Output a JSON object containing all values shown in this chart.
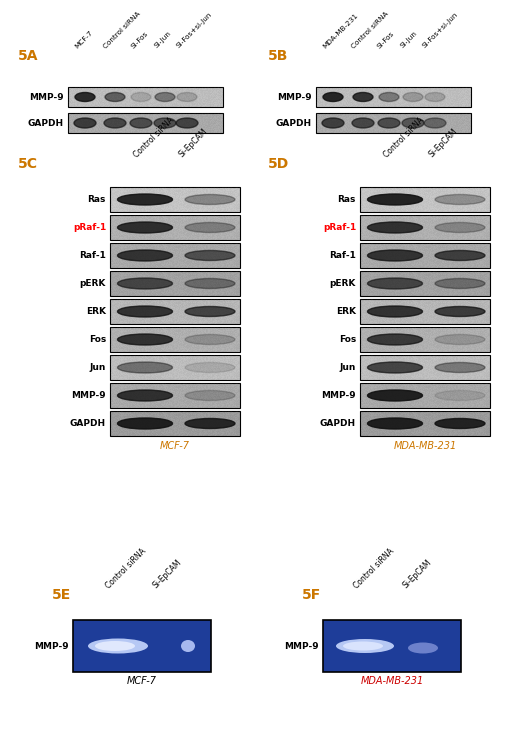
{
  "background_color": "#ffffff",
  "panel_5A": {
    "label": "5A",
    "col_labels": [
      "MCF-7",
      "Control siRNA",
      "Si-Fos",
      "Si-Jun",
      "Si-Fos+si-Jun"
    ],
    "rows": [
      "MMP-9",
      "GAPDH"
    ],
    "box_bg": [
      "#d8d8d8",
      "#c0c0c0"
    ],
    "mmp9_bands": [
      [
        0.85,
        0.6,
        0.18,
        0.45,
        0.22
      ],
      [
        0,
        0,
        0,
        0,
        0
      ]
    ],
    "gapdh_bands": [
      [
        0.7,
        0.65,
        0.62,
        0.6,
        0.68
      ],
      [
        0,
        0,
        0,
        0,
        0
      ]
    ]
  },
  "panel_5B": {
    "label": "5B",
    "col_labels": [
      "MDA-MB-231",
      "Control siRNA",
      "Si-Fos",
      "Si-Jun",
      "Si-Fos+si-Jun"
    ],
    "rows": [
      "MMP-9",
      "GAPDH"
    ],
    "box_bg": [
      "#d8d8d8",
      "#c0c0c0"
    ]
  },
  "panel_5C": {
    "label": "5C",
    "col_labels": [
      "Control siRNA",
      "Si-EpCAM"
    ],
    "rows": [
      "Ras",
      "pRaf-1",
      "Raf-1",
      "pERK",
      "ERK",
      "Fos",
      "Jun",
      "MMP-9",
      "GAPDH"
    ],
    "row_colors": [
      "black",
      "red",
      "black",
      "black",
      "black",
      "black",
      "black",
      "black",
      "black"
    ],
    "cell_label": "MCF-7",
    "ctrl_alpha": [
      0.88,
      0.82,
      0.78,
      0.65,
      0.8,
      0.8,
      0.45,
      0.8,
      0.9
    ],
    "si_alpha": [
      0.35,
      0.32,
      0.6,
      0.4,
      0.7,
      0.22,
      0.12,
      0.2,
      0.85
    ],
    "box_bg": [
      "#e0e0e0",
      "#c8c8c8",
      "#c0c0c0",
      "#b8b8b8",
      "#d0d0d0",
      "#c8c8c8",
      "#d8d8d8",
      "#c0c0c0",
      "#b0b0b0"
    ]
  },
  "panel_5D": {
    "label": "5D",
    "col_labels": [
      "Control siRNA",
      "Si-EpCAM"
    ],
    "rows": [
      "Ras",
      "pRaf-1",
      "Raf-1",
      "pERK",
      "ERK",
      "Fos",
      "Jun",
      "MMP-9",
      "GAPDH"
    ],
    "row_colors": [
      "black",
      "red",
      "black",
      "black",
      "black",
      "black",
      "black",
      "black",
      "black"
    ],
    "cell_label": "MDA-MB-231",
    "ctrl_alpha": [
      0.9,
      0.8,
      0.78,
      0.65,
      0.8,
      0.75,
      0.7,
      0.9,
      0.9
    ],
    "si_alpha": [
      0.3,
      0.28,
      0.7,
      0.38,
      0.75,
      0.18,
      0.4,
      0.1,
      0.88
    ],
    "box_bg": [
      "#e0e0e0",
      "#c8c8c8",
      "#c0c0c0",
      "#b8b8b8",
      "#d0d0d0",
      "#c8c8c8",
      "#d8d8d8",
      "#c0c0c0",
      "#b0b0b0"
    ]
  },
  "panel_5E": {
    "label": "5E",
    "col_labels": [
      "Control siRNA",
      "Si-EpCAM"
    ],
    "row_label": "MMP-9",
    "cell_label": "MCF-7",
    "bg_color": "#1e3d99"
  },
  "panel_5F": {
    "label": "5F",
    "col_labels": [
      "Control siRNA",
      "Si-EpCAM"
    ],
    "row_label": "MMP-9",
    "cell_label": "MDA-MB-231",
    "bg_color": "#1e3d99"
  }
}
